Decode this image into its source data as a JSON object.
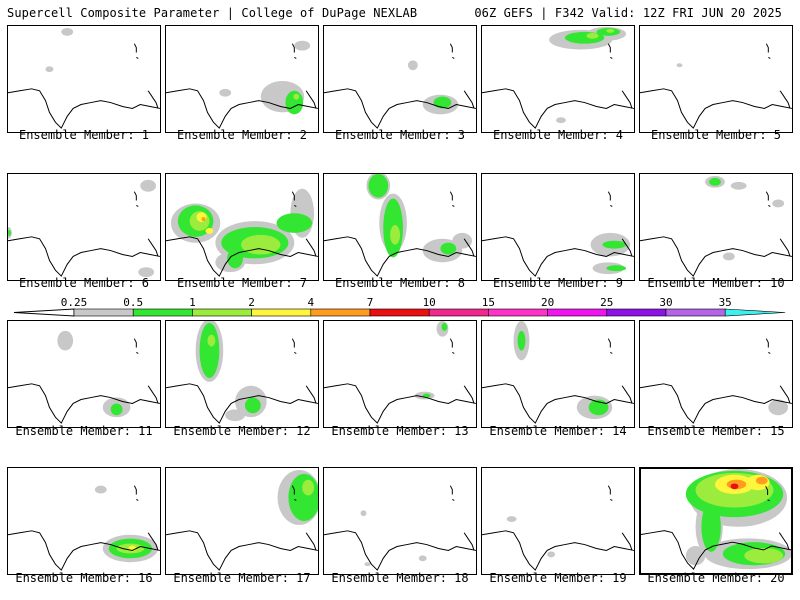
{
  "header": {
    "left": "Supercell Composite Parameter | College of DuPage NEXLAB",
    "right": "06Z GEFS | F342 Valid: 12Z FRI JUN 20 2025"
  },
  "label_prefix": "Ensemble Member:",
  "members": [
    {
      "number": "1",
      "label": "Ensemble Member: 1",
      "highlighted": false
    },
    {
      "number": "2",
      "label": "Ensemble Member: 2",
      "highlighted": false
    },
    {
      "number": "3",
      "label": "Ensemble Member: 3",
      "highlighted": false
    },
    {
      "number": "4",
      "label": "Ensemble Member: 4",
      "highlighted": false
    },
    {
      "number": "5",
      "label": "Ensemble Member: 5",
      "highlighted": false
    },
    {
      "number": "6",
      "label": "Ensemble Member: 6",
      "highlighted": false
    },
    {
      "number": "7",
      "label": "Ensemble Member: 7",
      "highlighted": false
    },
    {
      "number": "8",
      "label": "Ensemble Member: 8",
      "highlighted": false
    },
    {
      "number": "9",
      "label": "Ensemble Member: 9",
      "highlighted": false
    },
    {
      "number": "10",
      "label": "Ensemble Member: 10",
      "highlighted": false
    },
    {
      "number": "11",
      "label": "Ensemble Member: 11",
      "highlighted": false
    },
    {
      "number": "12",
      "label": "Ensemble Member: 12",
      "highlighted": false
    },
    {
      "number": "13",
      "label": "Ensemble Member: 13",
      "highlighted": false
    },
    {
      "number": "14",
      "label": "Ensemble Member: 14",
      "highlighted": false
    },
    {
      "number": "15",
      "label": "Ensemble Member: 15",
      "highlighted": false
    },
    {
      "number": "16",
      "label": "Ensemble Member: 16",
      "highlighted": false
    },
    {
      "number": "17",
      "label": "Ensemble Member: 17",
      "highlighted": false
    },
    {
      "number": "18",
      "label": "Ensemble Member: 18",
      "highlighted": false
    },
    {
      "number": "19",
      "label": "Ensemble Member: 19",
      "highlighted": false
    },
    {
      "number": "20",
      "label": "Ensemble Member: 20",
      "highlighted": true
    }
  ],
  "colorbar": {
    "ticks": [
      "0.25",
      "0.5",
      "1",
      "2",
      "4",
      "7",
      "10",
      "15",
      "20",
      "25",
      "30",
      "35"
    ],
    "colors": [
      "#c8c8c8",
      "#32e632",
      "#9bec3c",
      "#fff53c",
      "#ff9b1e",
      "#eb0f0f",
      "#f0288c",
      "#ff32c8",
      "#f014f0",
      "#8c14e6",
      "#b464e6",
      "#3cf0f0"
    ]
  }
}
